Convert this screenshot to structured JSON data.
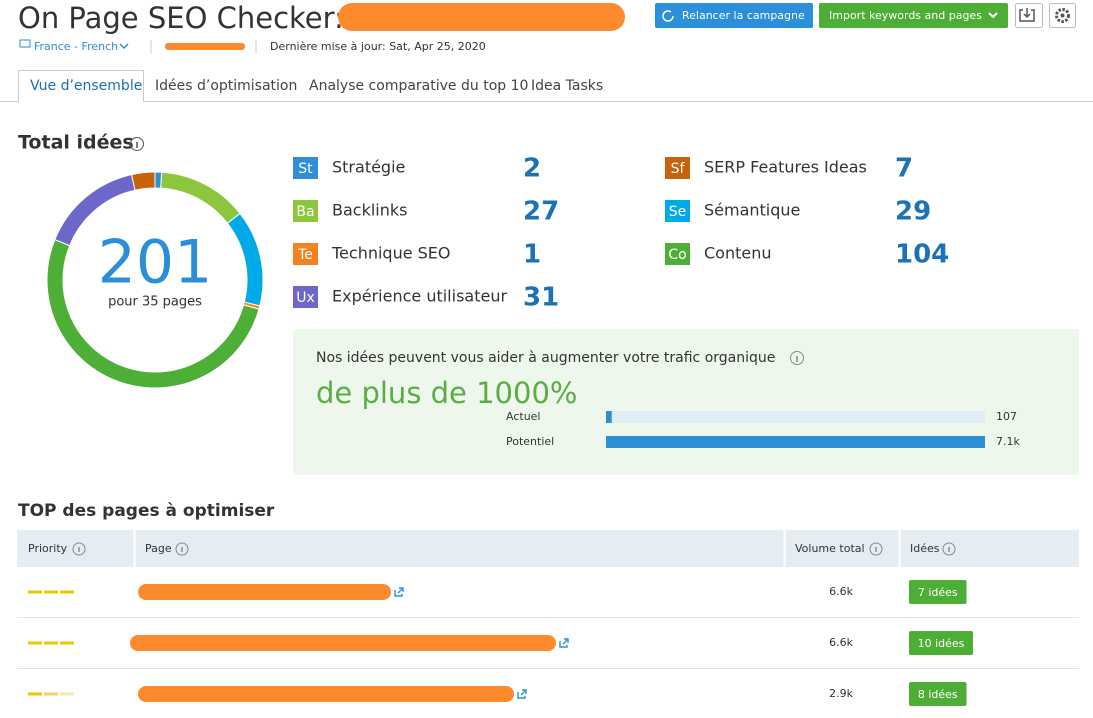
{
  "header": {
    "title": "On Page SEO Checker:",
    "locale": "France - French",
    "last_update": "Dernière mise à jour: Sat, Apr 25, 2020",
    "buttons": [
      "Relancer la campagne",
      "Import keywords and pages"
    ]
  },
  "tabs": [
    "Vue d’ensemble",
    "Idées d’optimisation",
    "Analyse comparative du top 10",
    "Idea Tasks"
  ],
  "total": {
    "title": "Total idées",
    "value": 201,
    "caption": "pour 35 pages"
  },
  "categories": [
    {
      "code": "St",
      "name": "Stratégie",
      "value": 2,
      "color": "#2e8fd6"
    },
    {
      "code": "Ba",
      "name": "Backlinks",
      "value": 27,
      "color": "#8cc63e"
    },
    {
      "code": "Te",
      "name": "Technique SEO",
      "value": 1,
      "color": "#f58220"
    },
    {
      "code": "Ux",
      "name": "Expérience utilisateur",
      "value": 31,
      "color": "#6c67c9"
    },
    {
      "code": "Sf",
      "name": "SERP Features Ideas",
      "value": 7,
      "color": "#c8620c"
    },
    {
      "code": "Se",
      "name": "Sémantique",
      "value": 29,
      "color": "#00aae6"
    },
    {
      "code": "Co",
      "name": "Contenu",
      "value": 104,
      "color": "#4daf35"
    }
  ],
  "traffic": {
    "text": "Nos idées peuvent vous aider à augmenter votre trafic organique",
    "highlight": "de plus de 1000%",
    "bars": [
      {
        "label": "Actuel",
        "value": 107,
        "value_label": "107"
      },
      {
        "label": "Potentiel",
        "value": 7100,
        "value_label": "7.1k"
      }
    ]
  },
  "table": {
    "title": "TOP des pages à optimiser",
    "columns": [
      "Priority",
      "Page",
      "Volume total",
      "Idées"
    ],
    "rows": [
      {
        "volume": "6.6k",
        "ideas": "7 idées"
      },
      {
        "volume": "6.6k",
        "ideas": "10 idées"
      },
      {
        "volume": "2.9k",
        "ideas": "8 idées"
      }
    ]
  }
}
